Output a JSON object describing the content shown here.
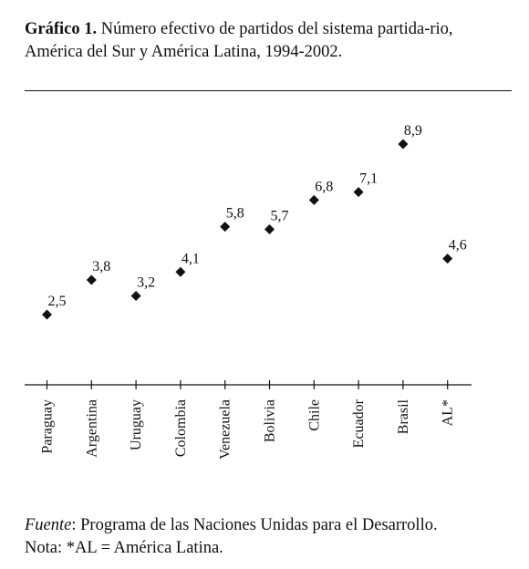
{
  "title": {
    "label": "Gráfico 1.",
    "text": "Número efectivo de partidos del sistema partida-rio, América del Sur y América Latina, 1994-2002."
  },
  "source": {
    "label": "Fuente",
    "text": ": Programa de las Naciones Unidas para el Desarrollo.",
    "note": "Nota: *AL = América Latina."
  },
  "chart_data": {
    "type": "scatter",
    "categories": [
      "Paraguay",
      "Argentina",
      "Uruguay",
      "Colombia",
      "Venezuela",
      "Bolivia",
      "Chile",
      "Ecuador",
      "Brasil",
      "AL*"
    ],
    "values": [
      2.5,
      3.8,
      3.2,
      4.1,
      5.8,
      5.7,
      6.8,
      7.1,
      8.9,
      4.6
    ],
    "value_labels": [
      "2,5",
      "3,8",
      "3,2",
      "4,1",
      "5,8",
      "5,7",
      "6,8",
      "7,1",
      "8,9",
      "4,6"
    ],
    "marker": "diamond",
    "grid": false,
    "legend": "none",
    "colors": {
      "marker": "#111111",
      "axis": "#111111"
    }
  }
}
